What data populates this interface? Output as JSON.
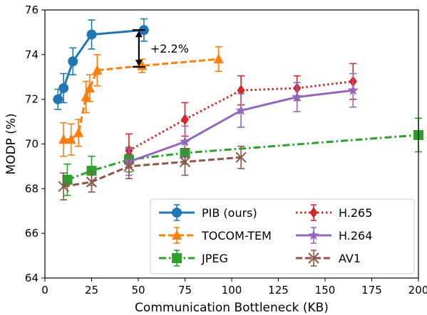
{
  "chart_data": {
    "type": "line",
    "xlabel": "Communication Bottleneck (KB)",
    "ylabel": "MODP (%)",
    "xlim": [
      0,
      200
    ],
    "ylim": [
      64,
      76
    ],
    "xticks": [
      "0",
      "25",
      "50",
      "75",
      "100",
      "125",
      "150",
      "175",
      "200"
    ],
    "yticks": [
      "64",
      "66",
      "68",
      "70",
      "72",
      "74",
      "76"
    ],
    "legend_position": "lower-right",
    "annotation": {
      "text": "+2.2%",
      "x": 53,
      "y_from": 75.1,
      "y_to": 73.45
    },
    "series": [
      {
        "name": "PIB (ours)",
        "color": "#1f77b4",
        "marker": "circle",
        "linestyle": "solid",
        "x": [
          7,
          10,
          15,
          25,
          53
        ],
        "y": [
          72.0,
          72.5,
          73.7,
          74.9,
          75.1
        ],
        "err": [
          0.45,
          0.65,
          0.6,
          0.65,
          0.5
        ]
      },
      {
        "name": "TOCOM-TEM",
        "color": "#ff7f0e",
        "marker": "triangle",
        "linestyle": "dashed",
        "x": [
          10,
          14,
          18,
          22,
          24,
          28,
          52,
          93
        ],
        "y": [
          70.2,
          70.2,
          70.5,
          72.1,
          72.5,
          73.3,
          73.5,
          73.8
        ],
        "err": [
          0.75,
          0.7,
          0.6,
          0.7,
          0.6,
          0.7,
          0.3,
          0.55
        ]
      },
      {
        "name": "JPEG",
        "color": "#2ca02c",
        "marker": "square",
        "linestyle": "dashdot",
        "x": [
          12,
          25,
          45,
          75,
          200
        ],
        "y": [
          68.4,
          68.8,
          69.3,
          69.6,
          70.4
        ],
        "err": [
          0.7,
          0.65,
          0.55,
          0.5,
          0.75
        ]
      },
      {
        "name": "H.265",
        "color": "#d62728",
        "marker": "diamond",
        "linestyle": "dotted",
        "x": [
          45,
          75,
          105,
          135,
          165
        ],
        "y": [
          69.7,
          71.1,
          72.4,
          72.5,
          72.8
        ],
        "err": [
          0.75,
          0.75,
          0.65,
          0.55,
          0.8
        ]
      },
      {
        "name": "H.264",
        "color": "#9467bd",
        "marker": "star",
        "linestyle": "solid",
        "x": [
          45,
          75,
          105,
          135,
          165
        ],
        "y": [
          69.2,
          70.1,
          71.5,
          72.1,
          72.4
        ],
        "err": [
          0.6,
          0.7,
          0.75,
          0.65,
          0.75
        ]
      },
      {
        "name": "AV1",
        "color": "#8c564b",
        "marker": "x",
        "linestyle": "dashed",
        "x": [
          10,
          25,
          45,
          75,
          105
        ],
        "y": [
          68.1,
          68.3,
          69.0,
          69.2,
          69.4
        ],
        "err": [
          0.6,
          0.45,
          0.55,
          0.6,
          0.5
        ]
      }
    ]
  }
}
